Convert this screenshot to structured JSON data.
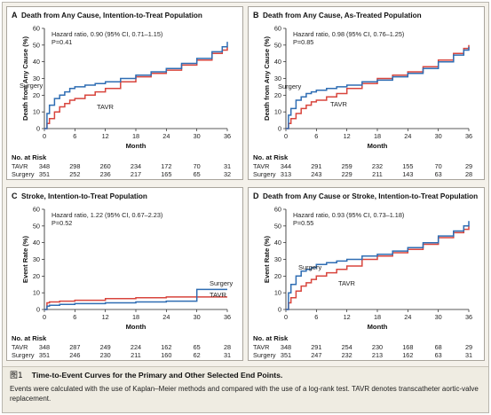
{
  "figure": {
    "label": "图1",
    "title": "Time-to-Event Curves for the Primary and Other Selected End Points.",
    "caption": "Events were calculated with the use of Kaplan–Meier methods and compared with the use of a log-rank test. TAVR denotes transcatheter aortic-valve replacement."
  },
  "colors": {
    "tavr": "#d8453d",
    "surgery": "#2f6db3",
    "axis": "#222222"
  },
  "chart_data": [
    {
      "type": "line",
      "letter": "A",
      "title": "Death from Any Cause, Intention-to-Treat Population",
      "ylabel": "Death from Any Cause (%)",
      "xlabel": "Month",
      "xlim": [
        0,
        36
      ],
      "ylim": [
        0,
        60
      ],
      "xticks": [
        0,
        6,
        12,
        18,
        24,
        30,
        36
      ],
      "yticks": [
        0,
        10,
        20,
        30,
        40,
        50,
        60
      ],
      "annotation": [
        "Hazard ratio, 0.90 (95% CI, 0.71–1.15)",
        "P=0.41"
      ],
      "series": [
        {
          "name": "Surgery",
          "x": [
            0,
            0.5,
            1,
            2,
            3,
            4,
            5,
            6,
            8,
            10,
            12,
            15,
            18,
            21,
            24,
            27,
            30,
            33,
            35,
            36
          ],
          "y": [
            0,
            9,
            14,
            18,
            20,
            22,
            24,
            25,
            26,
            27,
            28,
            30,
            32,
            34,
            36,
            39,
            42,
            46,
            49,
            52
          ]
        },
        {
          "name": "TAVR",
          "x": [
            0,
            0.5,
            1,
            2,
            3,
            4,
            5,
            6,
            8,
            10,
            12,
            15,
            18,
            21,
            24,
            27,
            30,
            33,
            35,
            36
          ],
          "y": [
            0,
            3,
            6,
            10,
            13,
            15,
            17,
            18,
            20,
            22,
            24,
            28,
            31,
            33,
            35,
            38,
            41,
            45,
            47,
            49
          ]
        }
      ],
      "risk_table": {
        "header": "No. at Risk",
        "rows": [
          {
            "name": "TAVR",
            "values": [
              "348",
              "298",
              "260",
              "234",
              "172",
              "70",
              "31"
            ]
          },
          {
            "name": "Surgery",
            "values": [
              "351",
              "252",
              "236",
              "217",
              "165",
              "65",
              "32"
            ]
          }
        ]
      }
    },
    {
      "type": "line",
      "letter": "B",
      "title": "Death from Any Cause, As-Treated Population",
      "ylabel": "Death from Any Cause (%)",
      "xlabel": "Month",
      "xlim": [
        0,
        36
      ],
      "ylim": [
        0,
        60
      ],
      "xticks": [
        0,
        6,
        12,
        18,
        24,
        30,
        36
      ],
      "yticks": [
        0,
        10,
        20,
        30,
        40,
        50,
        60
      ],
      "annotation": [
        "Hazard ratio, 0.98 (95% CI, 0.76–1.25)",
        "P=0.85"
      ],
      "series": [
        {
          "name": "Surgery",
          "x": [
            0,
            0.5,
            1,
            2,
            3,
            4,
            5,
            6,
            8,
            10,
            12,
            15,
            18,
            21,
            24,
            27,
            30,
            33,
            35,
            36
          ],
          "y": [
            0,
            8,
            12,
            17,
            19,
            21,
            22,
            23,
            24,
            25,
            26,
            28,
            29,
            31,
            33,
            36,
            40,
            44,
            47,
            49
          ]
        },
        {
          "name": "TAVR",
          "x": [
            0,
            0.5,
            1,
            2,
            3,
            4,
            5,
            6,
            8,
            10,
            12,
            15,
            18,
            21,
            24,
            27,
            30,
            33,
            35,
            36
          ],
          "y": [
            0,
            3,
            6,
            9,
            12,
            14,
            16,
            17,
            19,
            21,
            24,
            27,
            30,
            32,
            34,
            37,
            41,
            45,
            48,
            50
          ]
        }
      ],
      "risk_table": {
        "header": "No. at Risk",
        "rows": [
          {
            "name": "TAVR",
            "values": [
              "344",
              "291",
              "259",
              "232",
              "155",
              "70",
              "29"
            ]
          },
          {
            "name": "Surgery",
            "values": [
              "313",
              "243",
              "229",
              "211",
              "143",
              "63",
              "28"
            ]
          }
        ]
      }
    },
    {
      "type": "line",
      "letter": "C",
      "title": "Stroke, Intention-to-Treat Population",
      "ylabel": "Event Rate (%)",
      "xlabel": "Month",
      "xlim": [
        0,
        36
      ],
      "ylim": [
        0,
        60
      ],
      "xticks": [
        0,
        6,
        12,
        18,
        24,
        30,
        36
      ],
      "yticks": [
        0,
        10,
        20,
        30,
        40,
        50,
        60
      ],
      "annotation": [
        "Hazard ratio, 1.22 (95% CI, 0.67–2.23)",
        "P=0.52"
      ],
      "series": [
        {
          "name": "Surgery",
          "x": [
            0,
            0.5,
            1,
            3,
            6,
            12,
            18,
            24,
            29.5,
            30,
            36
          ],
          "y": [
            0,
            2,
            2.5,
            3,
            3.5,
            4,
            4.5,
            5,
            5,
            12,
            12
          ]
        },
        {
          "name": "TAVR",
          "x": [
            0,
            0.5,
            1,
            3,
            6,
            12,
            18,
            24,
            30,
            36
          ],
          "y": [
            0,
            4,
            4.5,
            5,
            5.5,
            6.5,
            7,
            7.5,
            7.5,
            7.5
          ]
        }
      ],
      "risk_table": {
        "header": "No. at Risk",
        "rows": [
          {
            "name": "TAVR",
            "values": [
              "348",
              "287",
              "249",
              "224",
              "162",
              "65",
              "28"
            ]
          },
          {
            "name": "Surgery",
            "values": [
              "351",
              "246",
              "230",
              "211",
              "160",
              "62",
              "31"
            ]
          }
        ]
      }
    },
    {
      "type": "line",
      "letter": "D",
      "title": "Death from Any Cause or Stroke, Intention-to-Treat Population",
      "ylabel": "Event Rate (%)",
      "xlabel": "Month",
      "xlim": [
        0,
        36
      ],
      "ylim": [
        0,
        60
      ],
      "xticks": [
        0,
        6,
        12,
        18,
        24,
        30,
        36
      ],
      "yticks": [
        0,
        10,
        20,
        30,
        40,
        50,
        60
      ],
      "annotation": [
        "Hazard ratio, 0.93 (95% CI, 0.73–1.18)",
        "P=0.55"
      ],
      "series": [
        {
          "name": "Surgery",
          "x": [
            0,
            0.5,
            1,
            2,
            3,
            4,
            5,
            6,
            8,
            10,
            12,
            15,
            18,
            21,
            24,
            27,
            30,
            33,
            35,
            36
          ],
          "y": [
            0,
            10,
            15,
            20,
            23,
            24,
            25,
            27,
            28,
            29,
            30,
            32,
            33,
            35,
            37,
            40,
            44,
            47,
            50,
            53
          ]
        },
        {
          "name": "TAVR",
          "x": [
            0,
            0.5,
            1,
            2,
            3,
            4,
            5,
            6,
            8,
            10,
            12,
            15,
            18,
            21,
            24,
            27,
            30,
            33,
            35,
            36
          ],
          "y": [
            0,
            4,
            7,
            11,
            14,
            16,
            18,
            20,
            22,
            24,
            26,
            30,
            32,
            34,
            36,
            39,
            43,
            46,
            48,
            50
          ]
        }
      ],
      "risk_table": {
        "header": "No. at Risk",
        "rows": [
          {
            "name": "TAVR",
            "values": [
              "348",
              "291",
              "254",
              "230",
              "168",
              "68",
              "29"
            ]
          },
          {
            "name": "Surgery",
            "values": [
              "351",
              "247",
              "232",
              "213",
              "162",
              "63",
              "31"
            ]
          }
        ]
      }
    }
  ]
}
